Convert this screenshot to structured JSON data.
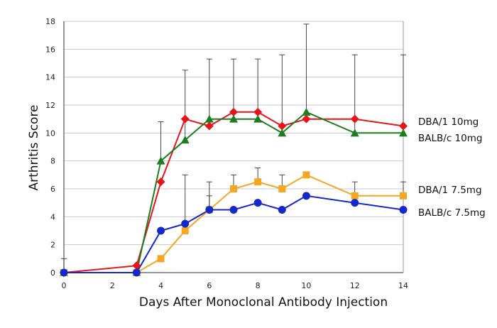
{
  "chart_data": {
    "type": "line",
    "xlabel": "Days After Monoclonal Antibody Injection",
    "ylabel": "Arthritis Score",
    "xlim": [
      0,
      14
    ],
    "ylim": [
      0,
      18
    ],
    "x_ticks": [
      0,
      2,
      4,
      6,
      8,
      10,
      12,
      14
    ],
    "y_ticks": [
      0,
      2,
      4,
      6,
      8,
      10,
      12,
      14,
      16,
      18
    ],
    "grid": "horizontal",
    "legend_placement": "right, labels beside line ends",
    "series": [
      {
        "name": "DBA/1 10mg",
        "color": "#e8141c",
        "marker": "diamond",
        "x": [
          0,
          3,
          4,
          5,
          6,
          7,
          8,
          9,
          10,
          12,
          14
        ],
        "y": [
          0,
          0.5,
          6.5,
          11,
          10.5,
          11.5,
          11.5,
          10.5,
          11,
          11,
          10.5
        ]
      },
      {
        "name": "BALB/c  10mg",
        "color": "#1e7d1e",
        "marker": "triangle",
        "x": [
          0,
          3,
          4,
          5,
          6,
          7,
          8,
          9,
          10,
          12,
          14
        ],
        "y": [
          0,
          0,
          8,
          9.5,
          11,
          11,
          11,
          10,
          11.5,
          10,
          10
        ],
        "error": [
          0,
          0,
          2.8,
          5,
          4.3,
          4.3,
          4.3,
          5.6,
          6.3,
          5.6,
          5.6
        ]
      },
      {
        "name": "DBA/1 7.5mg",
        "color": "#f5a623",
        "marker": "square",
        "x": [
          0,
          3,
          4,
          5,
          6,
          7,
          8,
          9,
          10,
          12,
          14
        ],
        "y": [
          0,
          0,
          1,
          3,
          4.5,
          6,
          6.5,
          6,
          7,
          5.5,
          5.5
        ],
        "error": [
          0,
          0,
          0,
          4,
          2,
          1,
          1,
          1,
          0,
          1,
          1
        ]
      },
      {
        "name": "BALB/c  7.5mg",
        "color": "#1528c8",
        "marker": "circle",
        "x": [
          0,
          3,
          4,
          5,
          6,
          7,
          8,
          9,
          10,
          12,
          14
        ],
        "y": [
          0,
          0,
          3,
          3.5,
          4.5,
          4.5,
          5,
          4.5,
          5.5,
          5,
          4.5
        ],
        "error": [
          1,
          0.5,
          0,
          0,
          1,
          0,
          0,
          0,
          0,
          0,
          0
        ]
      }
    ]
  }
}
